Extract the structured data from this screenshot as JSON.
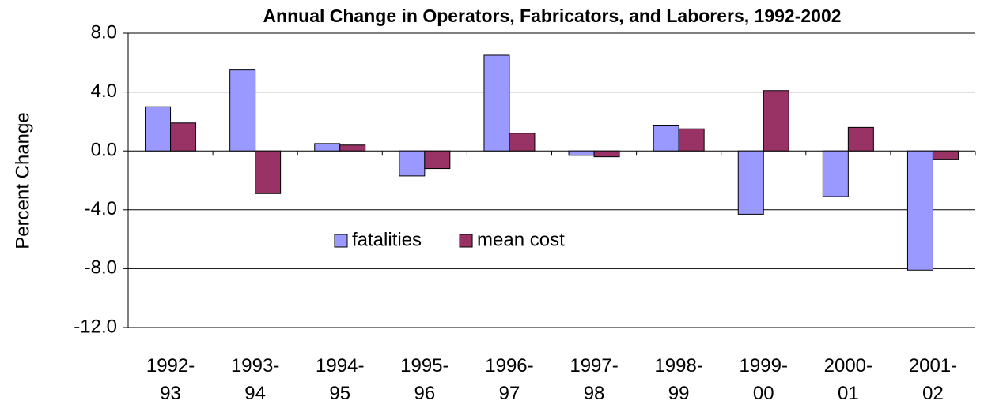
{
  "chart_data": {
    "type": "bar",
    "title": "Annual Change in Operators, Fabricators, and Laborers, 1992-2002",
    "y_label": "Percent Change",
    "categories": [
      "1992-93",
      "1993-94",
      "1994-95",
      "1995-96",
      "1996-97",
      "1997-98",
      "1998-99",
      "1999-00",
      "2000-01",
      "2001-02"
    ],
    "series": [
      {
        "name": "fatalities",
        "color": "#9999ff",
        "values": [
          3.0,
          5.5,
          0.5,
          -1.7,
          6.5,
          -0.3,
          1.7,
          -4.3,
          -3.1,
          -8.1
        ]
      },
      {
        "name": "mean cost",
        "color": "#993366",
        "values": [
          1.9,
          -2.9,
          0.4,
          -1.2,
          1.2,
          -0.4,
          1.5,
          4.1,
          1.6,
          -0.6
        ]
      }
    ],
    "ylim": [
      -12,
      8
    ],
    "yticks": [
      {
        "value": -12,
        "label": "-12.0"
      },
      {
        "value": -8,
        "label": "-8.0"
      },
      {
        "value": -4,
        "label": "-4.0"
      },
      {
        "value": 0,
        "label": "0.0"
      },
      {
        "value": 4,
        "label": "4.0"
      },
      {
        "value": 8,
        "label": "8.0"
      }
    ],
    "grid": true,
    "legend": "center"
  }
}
